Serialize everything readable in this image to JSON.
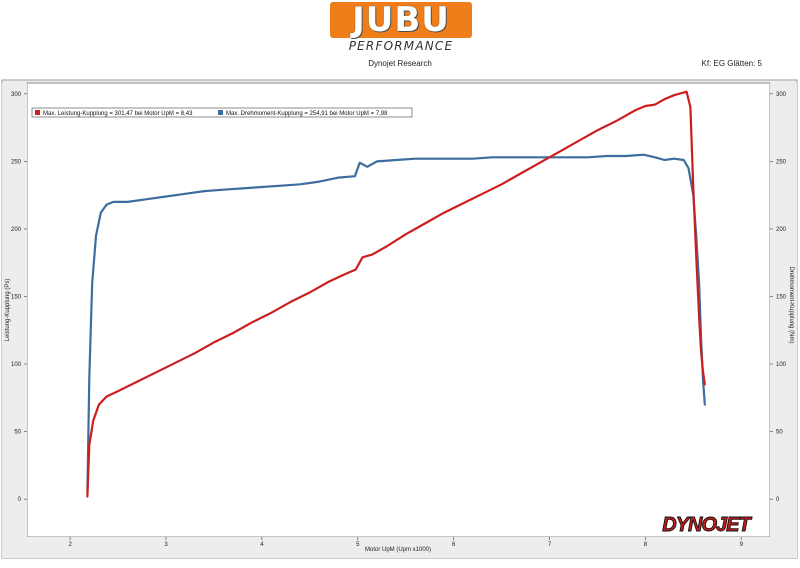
{
  "logo": {
    "main": "JUBU",
    "sub": "PERFORMANCE"
  },
  "header": {
    "center_title": "Dynojet Research",
    "right_title": "Kf: EG Glätten: 5"
  },
  "brand_mark": "DYNOJET",
  "colors": {
    "power": "#cc1e1e",
    "torque": "#3d6d9e",
    "logo_orange": "#ef7d1a",
    "plot_bg": "#ffffff",
    "frame": "#8a8a8a"
  },
  "chart_data": {
    "type": "line",
    "xlabel": "Motor UpM (Upm x1000)",
    "ylabel_left": "Leistung-Kupplung (Ps)",
    "ylabel_right": "Drehmoment-Kupplung (Nm)",
    "xlim": [
      1.55,
      9.3
    ],
    "ylim": [
      -28,
      308
    ],
    "x_ticks": [
      2,
      3,
      4,
      5,
      6,
      7,
      8,
      9
    ],
    "y_ticks": [
      0,
      50,
      100,
      150,
      200,
      250,
      300
    ],
    "grid": false,
    "legend_position": "top-left",
    "series": [
      {
        "name": "Max. Leistung-Kupplung = 301,47 bei Motor UpM = 8,43",
        "color": "#cc1e1e",
        "x": [
          2.18,
          2.2,
          2.24,
          2.3,
          2.38,
          2.5,
          2.7,
          2.9,
          3.1,
          3.3,
          3.5,
          3.7,
          3.9,
          4.1,
          4.3,
          4.5,
          4.7,
          4.85,
          4.98,
          5.05,
          5.15,
          5.3,
          5.5,
          5.7,
          5.9,
          6.1,
          6.3,
          6.5,
          6.7,
          6.9,
          7.1,
          7.3,
          7.5,
          7.7,
          7.9,
          8.0,
          8.1,
          8.2,
          8.3,
          8.4,
          8.43,
          8.47,
          8.5,
          8.53,
          8.56,
          8.58,
          8.6,
          8.62
        ],
        "values": [
          2,
          40,
          58,
          70,
          76,
          80,
          87,
          94,
          101,
          108,
          116,
          123,
          131,
          138,
          146,
          153,
          161,
          166,
          170,
          179,
          181,
          187,
          196,
          204,
          212,
          219,
          226,
          233,
          241,
          249,
          257,
          265,
          273,
          280,
          288,
          291,
          292,
          296,
          299,
          301,
          301.5,
          290,
          230,
          180,
          135,
          110,
          95,
          85
        ]
      },
      {
        "name": "Max. Drehmoment-Kupplung = 254,91 bei Motor UpM = 7,98",
        "color": "#3d6d9e",
        "x": [
          2.18,
          2.2,
          2.23,
          2.27,
          2.32,
          2.38,
          2.45,
          2.6,
          2.8,
          3.0,
          3.2,
          3.4,
          3.6,
          3.8,
          4.0,
          4.2,
          4.4,
          4.6,
          4.8,
          4.97,
          5.02,
          5.1,
          5.2,
          5.4,
          5.6,
          5.8,
          6.0,
          6.2,
          6.4,
          6.6,
          6.8,
          7.0,
          7.2,
          7.4,
          7.6,
          7.8,
          7.98,
          8.1,
          8.2,
          8.3,
          8.4,
          8.45,
          8.5,
          8.53,
          8.56,
          8.58,
          8.6,
          8.62
        ],
        "values": [
          5,
          90,
          160,
          195,
          212,
          218,
          220,
          220,
          222,
          224,
          226,
          228,
          229,
          230,
          231,
          232,
          233,
          235,
          238,
          239,
          249,
          246,
          250,
          251,
          252,
          252,
          252,
          252,
          253,
          253,
          253,
          253,
          253,
          253,
          254,
          254,
          254.9,
          253,
          251,
          252,
          251,
          245,
          225,
          195,
          160,
          120,
          90,
          70
        ]
      }
    ]
  }
}
